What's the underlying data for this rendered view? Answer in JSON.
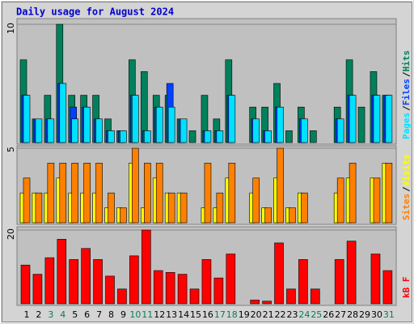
{
  "title": "Daily usage for August 2024",
  "legend_separator": "/",
  "categories": [
    "1",
    "2",
    "3",
    "4",
    "5",
    "6",
    "7",
    "8",
    "9",
    "10",
    "11",
    "12",
    "13",
    "14",
    "15",
    "16",
    "17",
    "18",
    "19",
    "20",
    "21",
    "22",
    "23",
    "24",
    "25",
    "26",
    "27",
    "28",
    "29",
    "30",
    "31"
  ],
  "category_colors": [
    "#000000",
    "#000000",
    "#00805c",
    "#00805c",
    "#000000",
    "#000000",
    "#000000",
    "#000000",
    "#000000",
    "#00805c",
    "#00805c",
    "#000000",
    "#000000",
    "#000000",
    "#000000",
    "#000000",
    "#00805c",
    "#00805c",
    "#000000",
    "#000000",
    "#000000",
    "#000000",
    "#000000",
    "#00805c",
    "#00805c",
    "#000000",
    "#000000",
    "#000000",
    "#000000",
    "#000000",
    "#00805c"
  ],
  "chart_data": [
    {
      "type": "bar",
      "ylim": [
        0,
        10
      ],
      "yticks": [
        10
      ],
      "series": [
        {
          "name": "Hits",
          "color": "#00805c",
          "values": [
            7,
            2,
            4,
            10,
            4,
            4,
            4,
            2,
            1,
            7,
            6,
            4,
            4,
            2,
            1,
            4,
            2,
            7,
            0,
            3,
            3,
            5,
            1,
            3,
            1,
            0,
            3,
            7,
            3,
            6,
            4
          ]
        },
        {
          "name": "Files",
          "color": "#0040ff",
          "values": [
            4,
            2,
            2,
            5,
            3,
            3,
            2,
            1,
            1,
            4,
            1,
            3,
            5,
            2,
            0,
            1,
            1,
            4,
            0,
            2,
            1,
            3,
            0,
            2,
            0,
            0,
            2,
            4,
            0,
            4,
            4
          ]
        },
        {
          "name": "Pages",
          "color": "#00e0ff",
          "values": [
            4,
            2,
            2,
            5,
            2,
            3,
            2,
            1,
            1,
            4,
            1,
            3,
            3,
            2,
            0,
            1,
            1,
            4,
            0,
            2,
            1,
            3,
            0,
            2,
            0,
            0,
            2,
            4,
            0,
            4,
            4
          ]
        }
      ]
    },
    {
      "type": "bar",
      "ylim": [
        0,
        5
      ],
      "yticks": [
        5
      ],
      "series": [
        {
          "name": "Visits",
          "color": "#ffff00",
          "values": [
            2,
            2,
            2,
            3,
            2,
            2,
            2,
            1,
            1,
            4,
            1,
            3,
            2,
            2,
            0,
            1,
            1,
            3,
            0,
            2,
            1,
            3,
            1,
            2,
            0,
            0,
            2,
            3,
            0,
            3,
            4
          ]
        },
        {
          "name": "Sites",
          "color": "#ff8000",
          "values": [
            3,
            2,
            4,
            4,
            4,
            4,
            4,
            2,
            1,
            5,
            4,
            4,
            2,
            2,
            0,
            4,
            2,
            4,
            0,
            3,
            1,
            5,
            1,
            2,
            0,
            0,
            3,
            4,
            0,
            3,
            4
          ]
        }
      ]
    },
    {
      "type": "bar",
      "ylim": [
        0,
        20
      ],
      "yticks": [
        20
      ],
      "series": [
        {
          "name": "kB F",
          "color": "#ff0000",
          "values": [
            10.5,
            8,
            12.5,
            17.5,
            12,
            15,
            12,
            7.5,
            4,
            13,
            20,
            9,
            8.5,
            8,
            4,
            12,
            7,
            13.5,
            0,
            1,
            0.7,
            16.5,
            4,
            12,
            4,
            0,
            12,
            17,
            0,
            13.5,
            9
          ]
        }
      ]
    }
  ]
}
